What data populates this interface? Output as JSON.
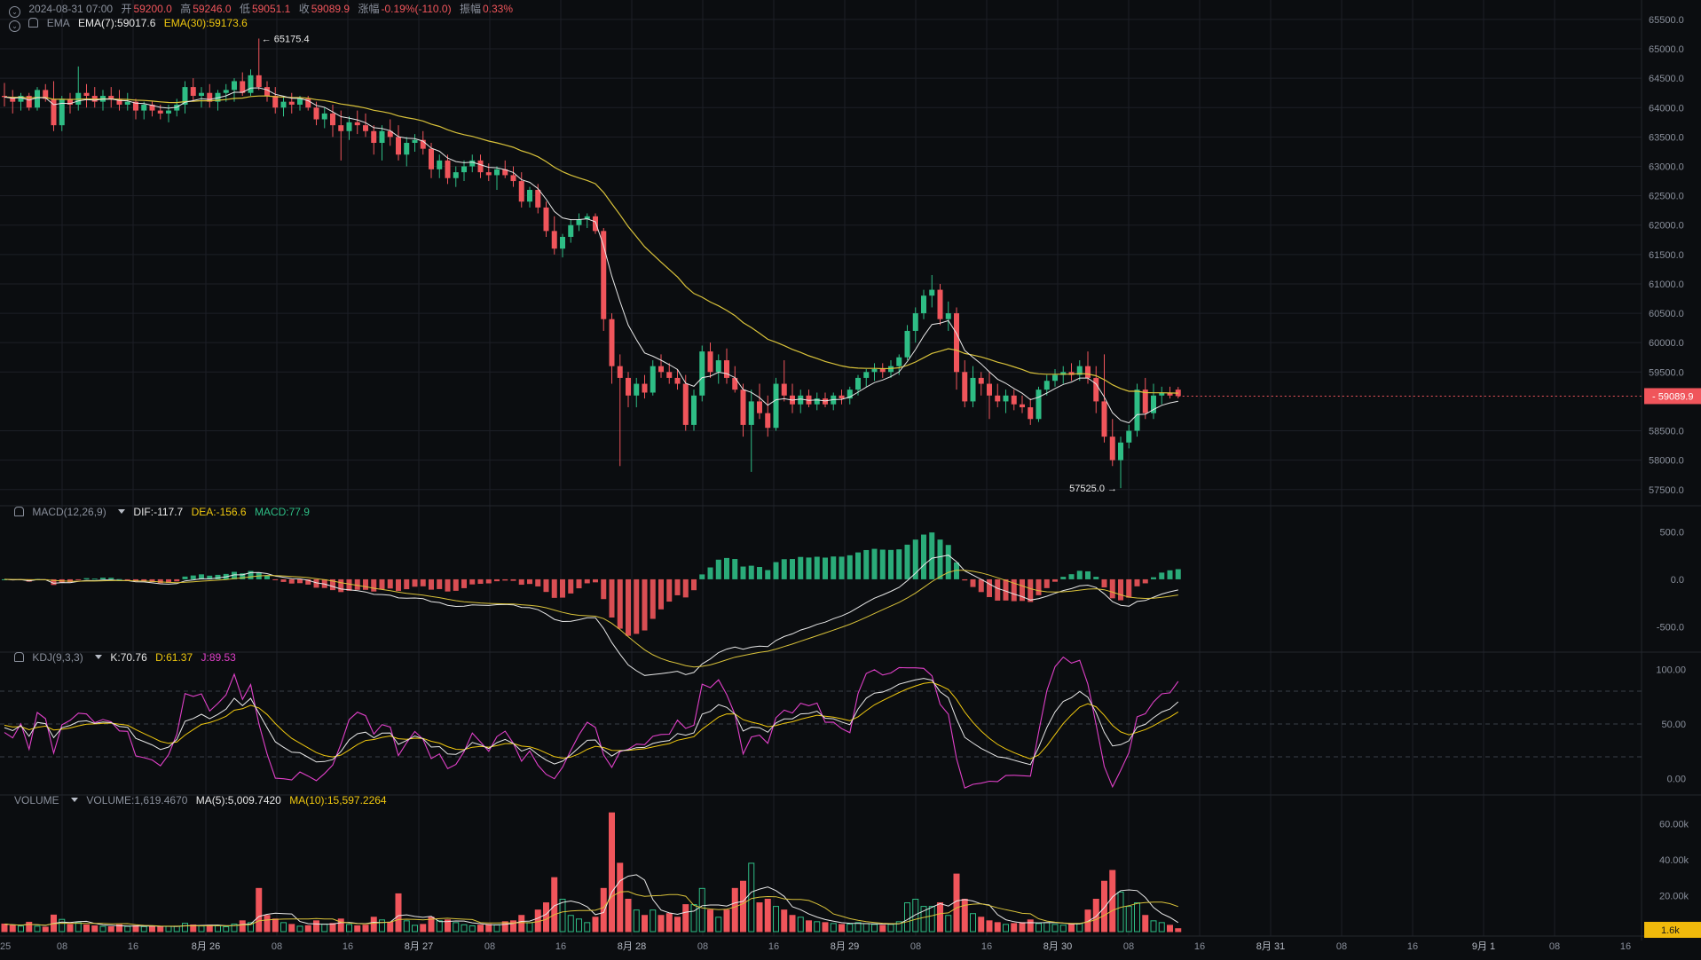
{
  "colors": {
    "up": "#2ebd85",
    "down": "#f0555b",
    "ema7": "#e8e8e8",
    "ema30": "#d9c23a",
    "k": "#e8e8e8",
    "d": "#f0c80f",
    "j": "#e040c8",
    "bg": "#0b0d10",
    "grid": "#1c1f26",
    "axis_text": "#8a909c"
  },
  "header": {
    "timestamp": "2024-08-31 07:00",
    "open_label": "开",
    "open_value": "59200.0",
    "high_label": "高",
    "high_value": "59246.0",
    "low_label": "低",
    "low_value": "59051.1",
    "close_label": "收",
    "close_value": "59089.9",
    "change_label": "涨幅",
    "change_value": "-0.19%(-110.0)",
    "amp_label": "振幅",
    "amp_value": "0.33%",
    "ema_label": "EMA",
    "ema7": "EMA(7):59017.6",
    "ema30": "EMA(30):59173.6"
  },
  "macd": {
    "label": "MACD(12,26,9)",
    "dif": "DIF:-117.7",
    "dea": "DEA:-156.6",
    "macd": "MACD:77.9",
    "axis": [
      "500.0",
      "0.0",
      "-500.0"
    ]
  },
  "kdj": {
    "label": "KDJ(9,3,3)",
    "k": "K:70.76",
    "d": "D:61.37",
    "j": "J:89.53",
    "axis": [
      "100.00",
      "50.00",
      "0.00"
    ]
  },
  "volume": {
    "label": "VOLUME",
    "vol": "VOLUME:1,619.4670",
    "ma5": "MA(5):5,009.7420",
    "ma10": "MA(10):15,597.2264",
    "axis": [
      "60.00k",
      "40.00k",
      "20.00k"
    ],
    "current_tag": "1.6k"
  },
  "price_axis": [
    "65500.0",
    "65000.0",
    "64500.0",
    "64000.0",
    "63500.0",
    "63000.0",
    "62500.0",
    "62000.0",
    "61500.0",
    "61000.0",
    "60500.0",
    "60000.0",
    "59500.0",
    "58500.0",
    "58000.0",
    "57500.0"
  ],
  "price_values": [
    65500,
    65000,
    64500,
    64000,
    63500,
    63000,
    62500,
    62000,
    61500,
    61000,
    60500,
    60000,
    59500,
    58500,
    58000,
    57500
  ],
  "current_price_tag": "59089.9",
  "current_price": 59089.9,
  "high_marker": "← 65175.4",
  "low_marker": "57525.0 →",
  "time_axis": [
    "25",
    "08",
    "16",
    "8月 26",
    "08",
    "16",
    "8月 27",
    "08",
    "16",
    "8月 28",
    "08",
    "16",
    "8月 29",
    "08",
    "16",
    "8月 30",
    "08",
    "16",
    "8月 31",
    "08",
    "16",
    "9月 1",
    "08",
    "16"
  ],
  "chart_data": {
    "type": "candlestick",
    "price_ylim": [
      57300,
      65650
    ],
    "macd_ylim": [
      -720,
      700
    ],
    "kdj_ylim": [
      -10,
      110
    ],
    "volume_ylim": [
      0,
      72000
    ],
    "kdj_levels": [
      80,
      50,
      20
    ],
    "ohlcv": [
      [
        64200,
        64420,
        64020,
        64180,
        4200
      ],
      [
        64180,
        64300,
        63900,
        64100,
        3500
      ],
      [
        64100,
        64250,
        63950,
        64200,
        3100
      ],
      [
        64200,
        64250,
        63950,
        64000,
        5200
      ],
      [
        64000,
        64350,
        63950,
        64300,
        3000
      ],
      [
        64300,
        64400,
        64100,
        64150,
        2500
      ],
      [
        64150,
        64450,
        63600,
        63700,
        9200
      ],
      [
        63700,
        64200,
        63600,
        64150,
        6800
      ],
      [
        64150,
        64250,
        63900,
        64050,
        4000
      ],
      [
        64050,
        64700,
        63950,
        64250,
        5000
      ],
      [
        64250,
        64400,
        64000,
        64200,
        3700
      ],
      [
        64200,
        64350,
        64000,
        64100,
        3200
      ],
      [
        64100,
        64300,
        63950,
        64200,
        2900
      ],
      [
        64200,
        64350,
        64000,
        64150,
        2700
      ],
      [
        64150,
        64300,
        63950,
        64050,
        3800
      ],
      [
        64050,
        64250,
        63950,
        64100,
        2900
      ],
      [
        64100,
        64150,
        63800,
        63950,
        3300
      ],
      [
        63950,
        64100,
        63800,
        64050,
        2800
      ],
      [
        64050,
        64100,
        63850,
        63950,
        3100
      ],
      [
        63950,
        64050,
        63800,
        63900,
        2600
      ],
      [
        63900,
        64050,
        63750,
        63950,
        2900
      ],
      [
        63950,
        64150,
        63850,
        64050,
        3000
      ],
      [
        64050,
        64450,
        63900,
        64350,
        4600
      ],
      [
        64350,
        64500,
        64100,
        64200,
        3700
      ],
      [
        64200,
        64350,
        64000,
        64250,
        3100
      ],
      [
        64250,
        64400,
        64000,
        64100,
        3600
      ],
      [
        64100,
        64300,
        63950,
        64250,
        3200
      ],
      [
        64250,
        64400,
        64100,
        64300,
        2700
      ],
      [
        64300,
        64500,
        64100,
        64450,
        4200
      ],
      [
        64450,
        64600,
        64200,
        64250,
        6000
      ],
      [
        64250,
        64650,
        64200,
        64550,
        5000
      ],
      [
        64550,
        65175,
        64300,
        64350,
        24000
      ],
      [
        64350,
        64450,
        64100,
        64200,
        9000
      ],
      [
        64200,
        64350,
        63900,
        64000,
        7000
      ],
      [
        64000,
        64200,
        63850,
        64100,
        5000
      ],
      [
        64100,
        64250,
        63900,
        64050,
        4000
      ],
      [
        64050,
        64200,
        63950,
        64150,
        3000
      ],
      [
        64150,
        64200,
        63950,
        64000,
        3300
      ],
      [
        64000,
        64100,
        63700,
        63800,
        6000
      ],
      [
        63800,
        64000,
        63650,
        63900,
        4200
      ],
      [
        63900,
        64050,
        63500,
        63700,
        4500
      ],
      [
        63700,
        63950,
        63100,
        63600,
        7000
      ],
      [
        63600,
        63850,
        63450,
        63750,
        4000
      ],
      [
        63750,
        63950,
        63550,
        63700,
        3200
      ],
      [
        63700,
        63900,
        63500,
        63600,
        3600
      ],
      [
        63600,
        63700,
        63200,
        63400,
        8000
      ],
      [
        63400,
        63700,
        63100,
        63600,
        6500
      ],
      [
        63600,
        63800,
        63350,
        63500,
        5200
      ],
      [
        63500,
        63700,
        63100,
        63200,
        21000
      ],
      [
        63200,
        63500,
        63000,
        63400,
        6000
      ],
      [
        63400,
        63550,
        63250,
        63450,
        3500
      ],
      [
        63450,
        63600,
        63200,
        63300,
        4000
      ],
      [
        63300,
        63400,
        62800,
        62950,
        8000
      ],
      [
        62950,
        63200,
        62800,
        63100,
        6000
      ],
      [
        63100,
        63200,
        62700,
        62800,
        6500
      ],
      [
        62800,
        63000,
        62650,
        62900,
        5000
      ],
      [
        62900,
        63100,
        62750,
        63000,
        3800
      ],
      [
        63000,
        63200,
        62900,
        63100,
        3200
      ],
      [
        63100,
        63200,
        62800,
        62900,
        3600
      ],
      [
        62900,
        63050,
        62750,
        62850,
        4000
      ],
      [
        62850,
        63000,
        62600,
        62950,
        3800
      ],
      [
        62950,
        63100,
        62800,
        62850,
        5500
      ],
      [
        62850,
        63000,
        62650,
        62750,
        6000
      ],
      [
        62750,
        62900,
        62300,
        62400,
        9000
      ],
      [
        62400,
        62650,
        62300,
        62600,
        5000
      ],
      [
        62600,
        62700,
        62200,
        62300,
        12000
      ],
      [
        62300,
        62400,
        61800,
        61900,
        16000
      ],
      [
        61900,
        62150,
        61500,
        61600,
        30000
      ],
      [
        61600,
        61850,
        61450,
        61800,
        18000
      ],
      [
        61800,
        62100,
        61700,
        62000,
        9000
      ],
      [
        62000,
        62200,
        61900,
        62100,
        7000
      ],
      [
        62100,
        62200,
        61950,
        62150,
        5000
      ],
      [
        62150,
        62200,
        61850,
        61900,
        8000
      ],
      [
        61900,
        61950,
        60200,
        60400,
        24000
      ],
      [
        60400,
        60500,
        59300,
        59600,
        66000
      ],
      [
        59600,
        59800,
        57900,
        59400,
        38000
      ],
      [
        59400,
        59500,
        58900,
        59100,
        18000
      ],
      [
        59100,
        59400,
        58900,
        59300,
        12000
      ],
      [
        59300,
        59450,
        59050,
        59150,
        9000
      ],
      [
        59150,
        59700,
        59100,
        59600,
        12000
      ],
      [
        59600,
        59800,
        59400,
        59500,
        9000
      ],
      [
        59500,
        59650,
        59300,
        59400,
        10000
      ],
      [
        59400,
        59550,
        59200,
        59300,
        8000
      ],
      [
        59300,
        59450,
        58500,
        58600,
        15000
      ],
      [
        58600,
        59200,
        58500,
        59100,
        15000
      ],
      [
        59100,
        59950,
        59000,
        59850,
        24000
      ],
      [
        59850,
        60000,
        59400,
        59500,
        12000
      ],
      [
        59500,
        59800,
        59300,
        59700,
        8000
      ],
      [
        59700,
        59900,
        59300,
        59400,
        12000
      ],
      [
        59400,
        59600,
        59150,
        59200,
        24000
      ],
      [
        59200,
        59300,
        58400,
        58600,
        28000
      ],
      [
        58600,
        59200,
        57800,
        59000,
        38000
      ],
      [
        59000,
        59300,
        58700,
        58800,
        16000
      ],
      [
        58800,
        59100,
        58400,
        58550,
        18000
      ],
      [
        58550,
        59400,
        58500,
        59300,
        14000
      ],
      [
        59300,
        59700,
        59000,
        59100,
        12000
      ],
      [
        59100,
        59300,
        58800,
        58950,
        9000
      ],
      [
        58950,
        59200,
        58800,
        59100,
        8000
      ],
      [
        59100,
        59200,
        58900,
        58950,
        6000
      ],
      [
        58950,
        59150,
        58850,
        59050,
        5500
      ],
      [
        59050,
        59150,
        58900,
        58950,
        5000
      ],
      [
        58950,
        59150,
        58850,
        59100,
        4500
      ],
      [
        59100,
        59200,
        58950,
        59050,
        4000
      ],
      [
        59050,
        59250,
        58950,
        59200,
        4200
      ],
      [
        59200,
        59450,
        59100,
        59400,
        5000
      ],
      [
        59400,
        59550,
        59250,
        59500,
        4500
      ],
      [
        59500,
        59650,
        59350,
        59550,
        4000
      ],
      [
        59550,
        59650,
        59400,
        59500,
        3500
      ],
      [
        59500,
        59700,
        59400,
        59600,
        4000
      ],
      [
        59600,
        59800,
        59450,
        59750,
        5500
      ],
      [
        59750,
        60300,
        59700,
        60200,
        16000
      ],
      [
        60200,
        60600,
        60000,
        60500,
        18000
      ],
      [
        60500,
        60900,
        60400,
        60800,
        14000
      ],
      [
        60800,
        61150,
        60600,
        60900,
        14000
      ],
      [
        60900,
        61000,
        60300,
        60400,
        16000
      ],
      [
        60400,
        60700,
        60200,
        60500,
        9000
      ],
      [
        60500,
        60600,
        59200,
        59500,
        32000
      ],
      [
        59500,
        59700,
        58900,
        59000,
        18000
      ],
      [
        59000,
        59600,
        58900,
        59400,
        10000
      ],
      [
        59400,
        59500,
        59100,
        59300,
        8000
      ],
      [
        59300,
        59500,
        58700,
        59100,
        6000
      ],
      [
        59100,
        59300,
        58900,
        59000,
        5000
      ],
      [
        59000,
        59200,
        58800,
        59100,
        4000
      ],
      [
        59100,
        59200,
        58850,
        58950,
        4500
      ],
      [
        58950,
        59100,
        58800,
        58900,
        5000
      ],
      [
        58900,
        59050,
        58600,
        58700,
        6500
      ],
      [
        58700,
        59250,
        58650,
        59200,
        4500
      ],
      [
        59200,
        59450,
        59100,
        59350,
        5000
      ],
      [
        59350,
        59550,
        59250,
        59450,
        4000
      ],
      [
        59450,
        59600,
        59300,
        59500,
        3600
      ],
      [
        59500,
        59650,
        59350,
        59450,
        4000
      ],
      [
        59450,
        59700,
        59350,
        59600,
        4500
      ],
      [
        59600,
        59850,
        59300,
        59400,
        12000
      ],
      [
        59400,
        59600,
        58800,
        59000,
        18000
      ],
      [
        59000,
        59800,
        58300,
        58400,
        28000
      ],
      [
        58400,
        58700,
        57900,
        58000,
        34000
      ],
      [
        58000,
        58400,
        57525,
        58300,
        22000
      ],
      [
        58300,
        58600,
        58200,
        58500,
        14000
      ],
      [
        58500,
        59300,
        58400,
        59200,
        16000
      ],
      [
        59200,
        59400,
        58700,
        58800,
        9000
      ],
      [
        58800,
        59300,
        58700,
        59100,
        6000
      ],
      [
        59100,
        59250,
        58950,
        59150,
        5000
      ],
      [
        59150,
        59250,
        59050,
        59100,
        3500
      ],
      [
        59200,
        59246,
        59051.1,
        59089.9,
        1619
      ]
    ]
  }
}
